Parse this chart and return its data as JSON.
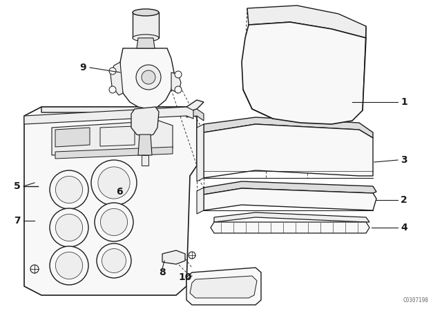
{
  "bg_color": "#ffffff",
  "line_color": "#1a1a1a",
  "fill_light": "#f8f8f8",
  "fill_mid": "#eeeeee",
  "fill_dark": "#dddddd",
  "watermark": "C0307198",
  "figsize": [
    6.4,
    4.48
  ],
  "dpi": 100
}
